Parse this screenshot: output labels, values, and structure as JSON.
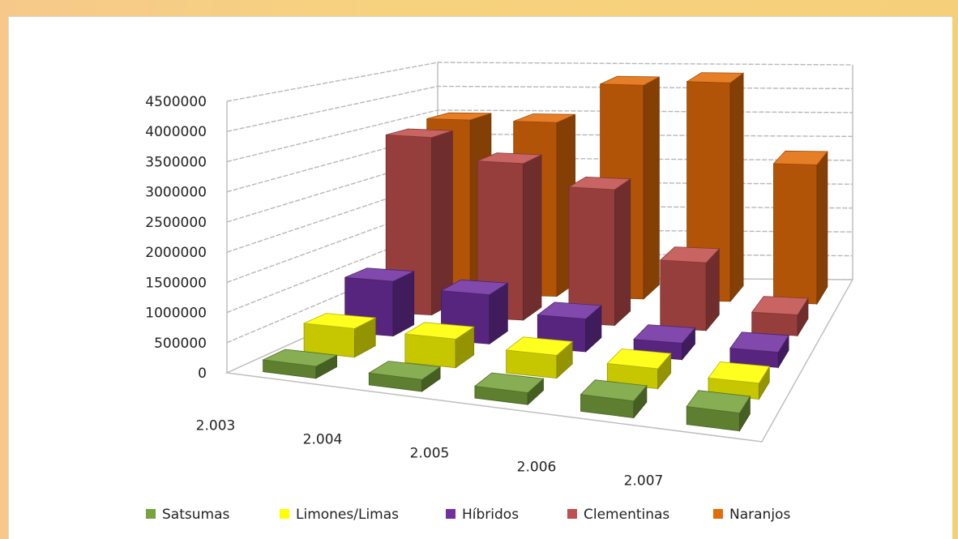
{
  "chart_data": {
    "type": "bar",
    "variant": "3d-column",
    "title": "",
    "categories": [
      "2.003",
      "2.004",
      "2.005",
      "2.006",
      "2.007"
    ],
    "ylim": [
      0,
      4500000
    ],
    "yticks": [
      "0",
      "500000",
      "1000000",
      "1500000",
      "2000000",
      "2500000",
      "3000000",
      "3500000",
      "4000000",
      "4500000"
    ],
    "grid": true,
    "legend_position": "bottom",
    "series": [
      {
        "name": "Satsumas",
        "color": "#77a33c",
        "values": [
          200000,
          200000,
          200000,
          280000,
          300000
        ]
      },
      {
        "name": "Limones/Limas",
        "color": "#ffff00",
        "values": [
          500000,
          500000,
          400000,
          350000,
          280000
        ]
      },
      {
        "name": "Híbridos",
        "color": "#7030a0",
        "values": [
          1000000,
          900000,
          600000,
          300000,
          280000
        ]
      },
      {
        "name": "Clementinas",
        "color": "#c0504d",
        "values": [
          3400000,
          3000000,
          2600000,
          1300000,
          400000
        ]
      },
      {
        "name": "Naranjos",
        "color": "#e36c09",
        "values": [
          3500000,
          3500000,
          4300000,
          4400000,
          2800000
        ]
      }
    ]
  }
}
